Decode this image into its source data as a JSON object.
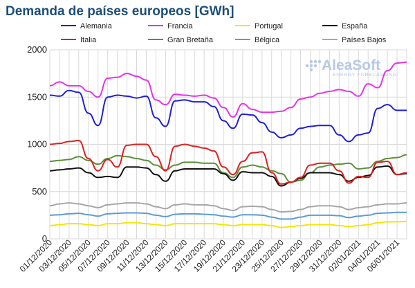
{
  "chart_data": {
    "type": "line",
    "title": "Demanda de países europeos [GWh]",
    "xlabel": "",
    "ylabel": "",
    "ylim": [
      0,
      2000
    ],
    "y_ticks": [
      "0",
      "500",
      "1000",
      "1500",
      "2000"
    ],
    "grid": true,
    "legend_position": "top",
    "x_tick_labels": [
      "01/12/2020",
      "03/12/2020",
      "05/12/2020",
      "07/12/2020",
      "09/12/2020",
      "11/12/2020",
      "13/12/2020",
      "15/12/2020",
      "17/12/2020",
      "19/12/2020",
      "21/12/2020",
      "23/12/2020",
      "25/12/2020",
      "27/12/2020",
      "29/12/2020",
      "31/12/2020",
      "02/01/2021",
      "04/01/2021",
      "06/01/2021"
    ],
    "x": [
      "01/12/2020",
      "02/12/2020",
      "03/12/2020",
      "04/12/2020",
      "05/12/2020",
      "06/12/2020",
      "07/12/2020",
      "08/12/2020",
      "09/12/2020",
      "10/12/2020",
      "11/12/2020",
      "12/12/2020",
      "13/12/2020",
      "14/12/2020",
      "15/12/2020",
      "16/12/2020",
      "17/12/2020",
      "18/12/2020",
      "19/12/2020",
      "20/12/2020",
      "21/12/2020",
      "22/12/2020",
      "23/12/2020",
      "24/12/2020",
      "25/12/2020",
      "26/12/2020",
      "27/12/2020",
      "28/12/2020",
      "29/12/2020",
      "30/12/2020",
      "31/12/2020",
      "01/01/2021",
      "02/01/2021",
      "03/01/2021",
      "04/01/2021",
      "05/01/2021",
      "06/01/2021",
      "07/01/2021"
    ],
    "series": [
      {
        "name": "Alemania",
        "color": "#1f1fd6",
        "values": [
          1520,
          1510,
          1570,
          1550,
          1330,
          1200,
          1500,
          1520,
          1510,
          1490,
          1510,
          1280,
          1190,
          1460,
          1470,
          1450,
          1450,
          1400,
          1250,
          1170,
          1320,
          1310,
          1230,
          1130,
          1070,
          1100,
          1170,
          1190,
          1200,
          1200,
          1100,
          1030,
          1100,
          1120,
          1380,
          1420,
          1360,
          1360
        ]
      },
      {
        "name": "Francia",
        "color": "#e830e8",
        "values": [
          1620,
          1660,
          1620,
          1620,
          1560,
          1500,
          1700,
          1710,
          1750,
          1720,
          1680,
          1470,
          1420,
          1530,
          1520,
          1510,
          1520,
          1490,
          1390,
          1290,
          1430,
          1370,
          1340,
          1340,
          1350,
          1390,
          1480,
          1500,
          1540,
          1560,
          1580,
          1560,
          1510,
          1640,
          1600,
          1780,
          1860,
          1870
        ]
      },
      {
        "name": "Portugal",
        "color": "#f2e600",
        "values": [
          140,
          150,
          160,
          160,
          150,
          140,
          160,
          160,
          170,
          170,
          160,
          150,
          140,
          160,
          160,
          160,
          160,
          160,
          150,
          140,
          150,
          150,
          150,
          140,
          120,
          130,
          140,
          150,
          150,
          150,
          140,
          130,
          140,
          150,
          170,
          180,
          180,
          185
        ]
      },
      {
        "name": "España",
        "color": "#111111",
        "values": [
          720,
          730,
          740,
          750,
          700,
          650,
          660,
          650,
          760,
          760,
          750,
          680,
          610,
          720,
          740,
          740,
          740,
          740,
          690,
          620,
          710,
          700,
          700,
          660,
          560,
          600,
          640,
          700,
          700,
          700,
          680,
          610,
          650,
          670,
          760,
          770,
          680,
          690
        ]
      },
      {
        "name": "Italia",
        "color": "#e01f1f",
        "values": [
          1000,
          1010,
          1030,
          1040,
          850,
          720,
          840,
          760,
          990,
          1000,
          1000,
          870,
          720,
          980,
          1000,
          980,
          960,
          930,
          760,
          680,
          820,
          910,
          920,
          700,
          580,
          600,
          650,
          780,
          800,
          800,
          720,
          590,
          660,
          650,
          810,
          820,
          680,
          700
        ]
      },
      {
        "name": "Gran Bretaña",
        "color": "#5a8f3a",
        "values": [
          820,
          830,
          840,
          870,
          830,
          790,
          850,
          880,
          870,
          850,
          830,
          780,
          730,
          780,
          810,
          810,
          800,
          800,
          700,
          650,
          760,
          780,
          760,
          720,
          690,
          600,
          620,
          700,
          760,
          780,
          790,
          800,
          740,
          750,
          820,
          850,
          860,
          890
        ]
      },
      {
        "name": "Bélgica",
        "color": "#5b9bd5",
        "values": [
          250,
          255,
          265,
          270,
          255,
          240,
          265,
          270,
          275,
          275,
          270,
          250,
          235,
          260,
          265,
          265,
          260,
          255,
          240,
          230,
          255,
          255,
          250,
          230,
          210,
          210,
          230,
          250,
          250,
          250,
          245,
          225,
          240,
          250,
          270,
          275,
          280,
          280
        ]
      },
      {
        "name": "Países Bajos",
        "color": "#a6a6a6",
        "values": [
          350,
          370,
          380,
          370,
          350,
          330,
          360,
          370,
          380,
          380,
          370,
          340,
          320,
          360,
          370,
          360,
          360,
          350,
          320,
          300,
          340,
          345,
          340,
          310,
          285,
          290,
          310,
          340,
          350,
          350,
          340,
          310,
          330,
          340,
          360,
          370,
          370,
          380
        ]
      }
    ]
  },
  "logo": {
    "name": "AleaSoft",
    "tagline": "ENERGY FORECASTING"
  }
}
